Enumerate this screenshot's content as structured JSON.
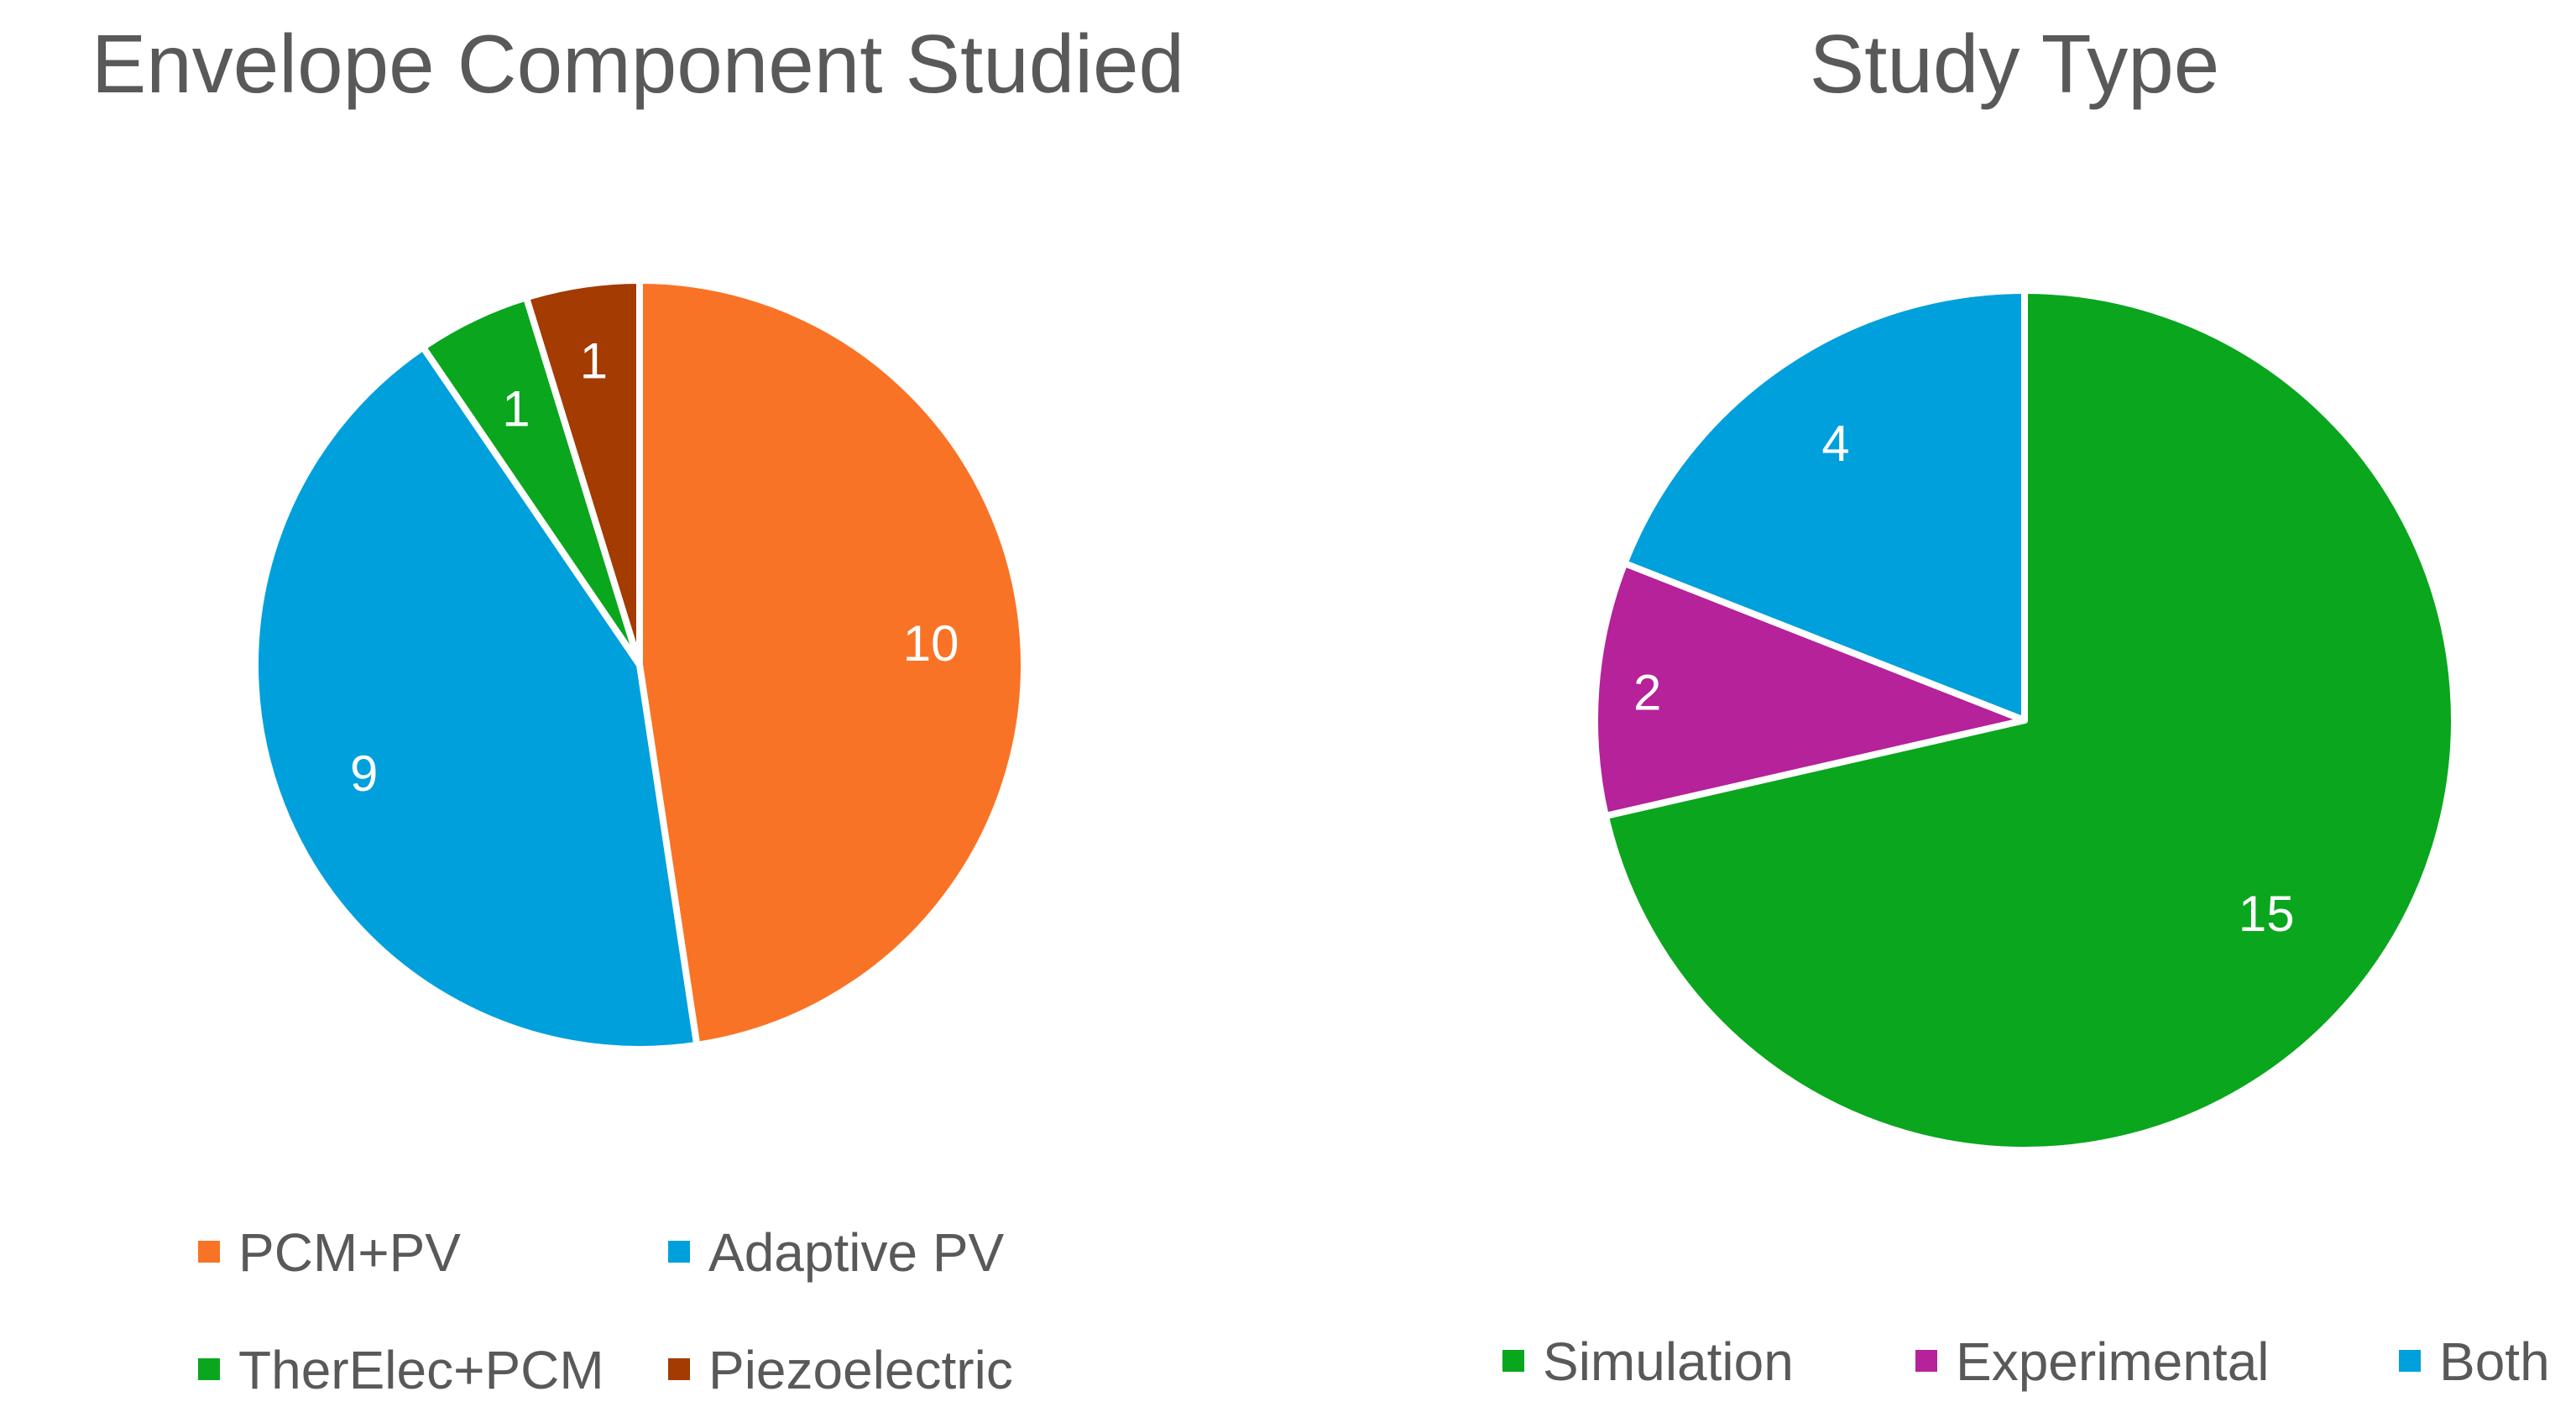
{
  "chart_data": [
    {
      "type": "pie",
      "title": "Envelope Component Studied",
      "categories": [
        "PCM+PV",
        "Adaptive PV",
        "TherElec+PCM",
        "Piezoelectric"
      ],
      "values": [
        10,
        9,
        1,
        1
      ],
      "colors": [
        "#F97326",
        "#00A0DC",
        "#0AA61E",
        "#A33B02"
      ],
      "data_labels": [
        "10",
        "9",
        "1",
        "1"
      ],
      "legend_position": "bottom"
    },
    {
      "type": "pie",
      "title": "Study Type",
      "categories": [
        "Simulation",
        "Experimental",
        "Both"
      ],
      "values": [
        15,
        2,
        4
      ],
      "colors": [
        "#0AA61E",
        "#B5229A",
        "#00A0DC"
      ],
      "data_labels": [
        "15",
        "2",
        "4"
      ],
      "legend_position": "bottom"
    }
  ]
}
